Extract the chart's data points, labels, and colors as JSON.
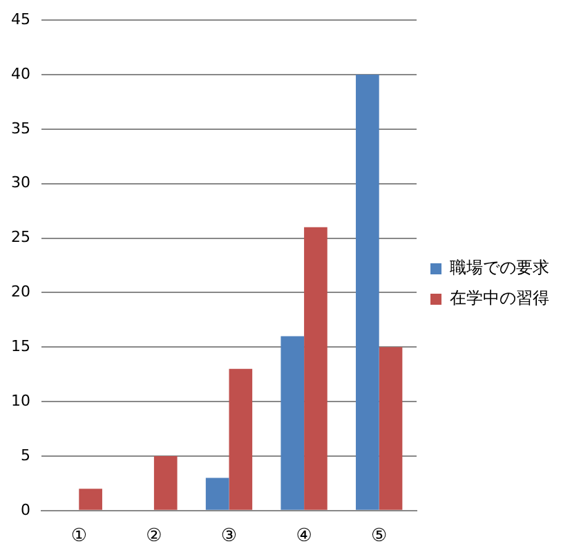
{
  "chart_data": {
    "type": "bar",
    "categories": [
      "①",
      "②",
      "③",
      "④",
      "⑤"
    ],
    "series": [
      {
        "name": "職場での要求",
        "color": "#4f81bd",
        "values": [
          0,
          0,
          3,
          16,
          40
        ]
      },
      {
        "name": "在学中の習得",
        "color": "#c0504d",
        "values": [
          2,
          5,
          13,
          26,
          15
        ]
      }
    ],
    "ylim": [
      0,
      45
    ],
    "yticks": [
      0,
      5,
      10,
      15,
      20,
      25,
      30,
      35,
      40,
      45
    ],
    "grid": "y",
    "legend": "right"
  }
}
